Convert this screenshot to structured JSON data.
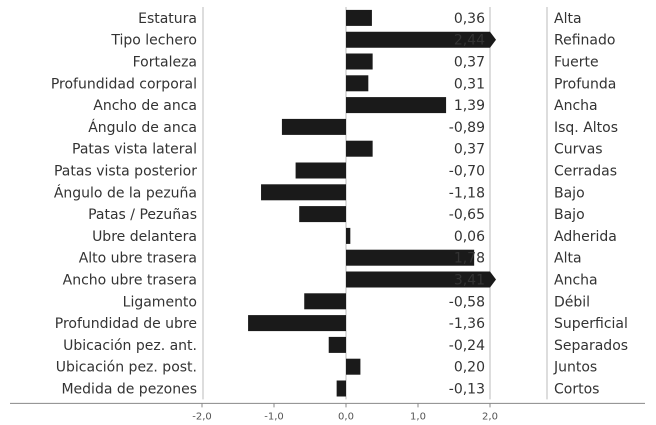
{
  "chart_data": {
    "type": "bar",
    "orientation": "horizontal",
    "xlim": [
      -2.0,
      2.0
    ],
    "xticks": [
      "-2,0",
      "-1,0",
      "0,0",
      "1,0",
      "2,0"
    ],
    "grid": false,
    "colors": {
      "bar": "#1a1a1a",
      "lines": "#bbbbbb",
      "axis": "#888888"
    },
    "categories": [
      "Estatura",
      "Tipo lechero",
      "Fortaleza",
      "Profundidad corporal",
      "Ancho de anca",
      "Ángulo de anca",
      "Patas vista lateral",
      "Patas vista posterior",
      "Ángulo de la pezuña",
      "Patas / Pezuñas",
      "Ubre delantera",
      "Alto ubre trasera",
      "Ancho ubre trasera",
      "Ligamento",
      "Profundidad de ubre",
      "Ubicación pez. ant.",
      "Ubicación pez. post.",
      "Medida de pezones"
    ],
    "values": [
      0.36,
      2.44,
      0.37,
      0.31,
      1.39,
      -0.89,
      0.37,
      -0.7,
      -1.18,
      -0.65,
      0.06,
      1.78,
      3.41,
      -0.58,
      -1.36,
      -0.24,
      0.2,
      -0.13
    ],
    "value_labels": [
      "0,36",
      "2,44",
      "0,37",
      "0,31",
      "1,39",
      "-0,89",
      "0,37",
      "-0,70",
      "-1,18",
      "-0,65",
      "0,06",
      "1,78",
      "3,41",
      "-0,58",
      "-1,36",
      "-0,24",
      "0,20",
      "-0,13"
    ],
    "descriptors": [
      "Alta",
      "Refinado",
      "Fuerte",
      "Profunda",
      "Ancha",
      "Isq. Altos",
      "Curvas",
      "Cerradas",
      "Bajo",
      "Bajo",
      "Adherida",
      "Alta",
      "Ancha",
      "Débil",
      "Superficial",
      "Separados",
      "Juntos",
      "Cortos"
    ]
  }
}
